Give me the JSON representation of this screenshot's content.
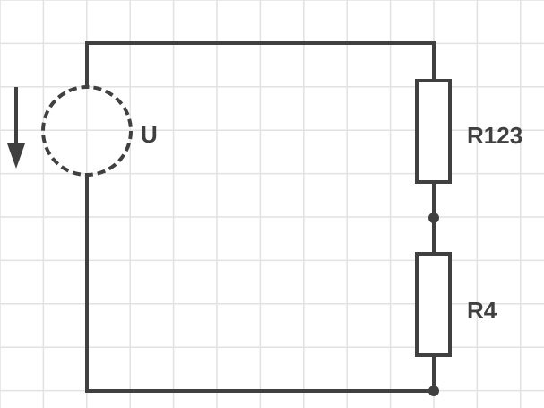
{
  "colors": {
    "grid": "#e2e2e2",
    "wire": "#404040",
    "background": "#ffffff"
  },
  "labels": {
    "source": "U",
    "resistor_top": "R123",
    "resistor_bottom": "R4"
  },
  "icons": {
    "source": "dashed-circle-voltage-source-icon",
    "arrow": "down-arrow-icon",
    "resistor": "rectangle-resistor-icon",
    "junction": "dot-junction-icon"
  }
}
